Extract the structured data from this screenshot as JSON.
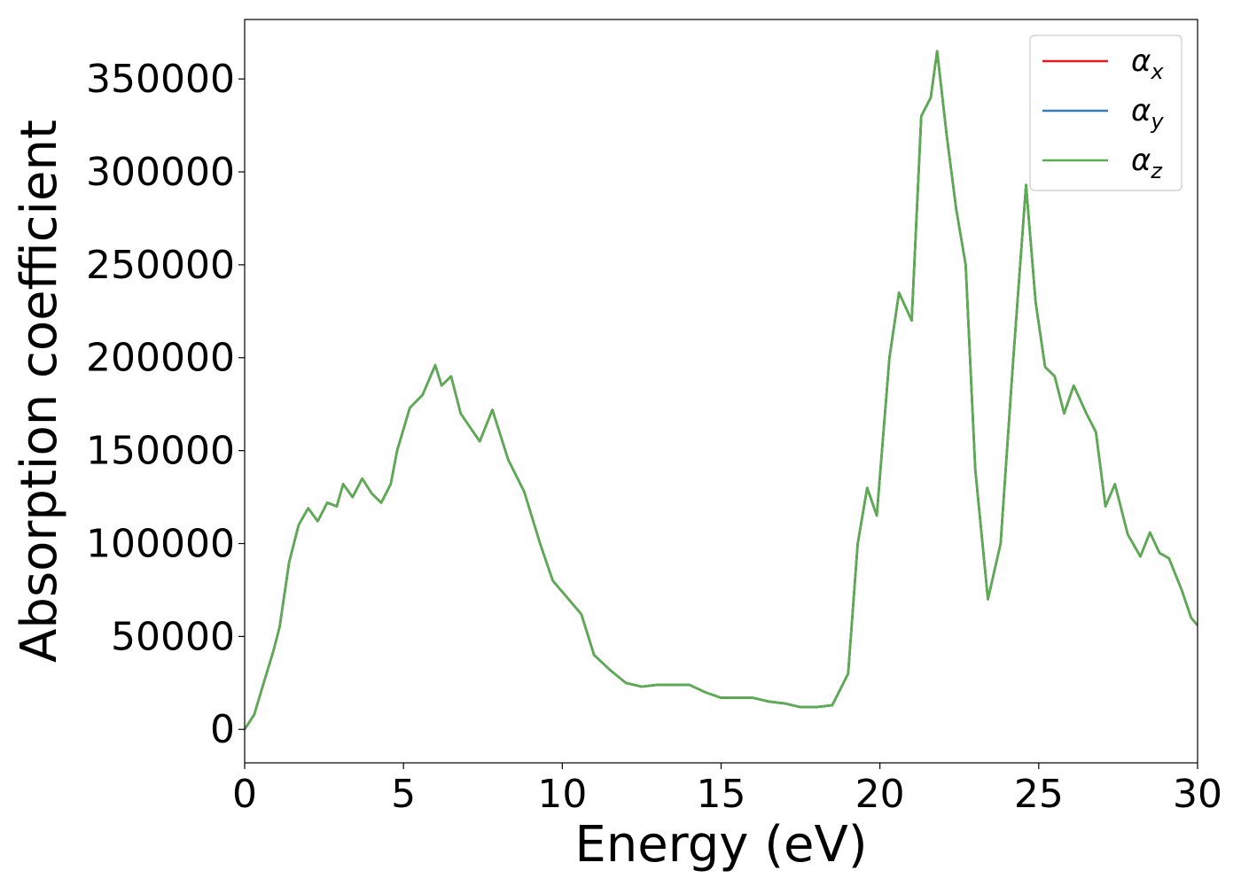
{
  "chart_data": {
    "type": "line",
    "xlabel": "Energy (eV)",
    "ylabel": "Absorption coefficient",
    "xlim": [
      0,
      30
    ],
    "ylim": [
      -18000,
      382000
    ],
    "xticks": [
      0,
      5,
      10,
      15,
      20,
      25,
      30
    ],
    "xtick_labels": [
      "0",
      "5",
      "10",
      "15",
      "20",
      "25",
      "30"
    ],
    "yticks": [
      0,
      50000,
      100000,
      150000,
      200000,
      250000,
      300000,
      350000
    ],
    "ytick_labels": [
      "0",
      "50000",
      "100000",
      "150000",
      "200000",
      "250000",
      "300000",
      "350000"
    ],
    "grid": false,
    "legend_position": "top-right",
    "x": [
      0,
      0.3,
      0.6,
      0.9,
      1.1,
      1.4,
      1.7,
      2.0,
      2.3,
      2.6,
      2.9,
      3.1,
      3.4,
      3.7,
      4.0,
      4.3,
      4.6,
      4.8,
      5.2,
      5.6,
      6.0,
      6.2,
      6.5,
      6.8,
      7.0,
      7.4,
      7.8,
      8.3,
      8.8,
      9.3,
      9.7,
      10.2,
      10.6,
      11.0,
      11.5,
      12.0,
      12.5,
      13.0,
      13.5,
      14.0,
      14.5,
      15.0,
      15.5,
      16.0,
      16.5,
      17.0,
      17.5,
      18.0,
      18.5,
      19.0,
      19.3,
      19.6,
      19.9,
      20.3,
      20.6,
      21.0,
      21.3,
      21.6,
      21.8,
      22.1,
      22.4,
      22.7,
      23.0,
      23.4,
      23.8,
      24.2,
      24.6,
      24.9,
      25.2,
      25.5,
      25.8,
      26.1,
      26.5,
      26.8,
      27.1,
      27.4,
      27.8,
      28.2,
      28.5,
      28.8,
      29.1,
      29.5,
      29.8,
      30.0
    ],
    "series": [
      {
        "name": "αx",
        "color": "#e41a1c",
        "values": [
          0,
          8000,
          25000,
          42000,
          55000,
          90000,
          110000,
          119000,
          112000,
          122000,
          120000,
          132000,
          125000,
          135000,
          127000,
          122000,
          132000,
          150000,
          173000,
          180000,
          196000,
          185000,
          190000,
          170000,
          165000,
          155000,
          172000,
          145000,
          128000,
          100000,
          80000,
          70000,
          62000,
          40000,
          32000,
          25000,
          23000,
          24000,
          24000,
          24000,
          20000,
          17000,
          17000,
          17000,
          15000,
          14000,
          12000,
          12000,
          13000,
          30000,
          100000,
          130000,
          115000,
          200000,
          235000,
          220000,
          330000,
          340000,
          365000,
          320000,
          280000,
          250000,
          140000,
          70000,
          100000,
          200000,
          293000,
          230000,
          195000,
          190000,
          170000,
          185000,
          170000,
          160000,
          120000,
          132000,
          105000,
          93000,
          106000,
          95000,
          92000,
          75000,
          60000,
          56000
        ]
      },
      {
        "name": "αy",
        "color": "#377eb8",
        "values": [
          0,
          8000,
          25000,
          42000,
          55000,
          90000,
          110000,
          119000,
          112000,
          122000,
          120000,
          132000,
          125000,
          135000,
          127000,
          122000,
          132000,
          150000,
          173000,
          180000,
          196000,
          185000,
          190000,
          170000,
          165000,
          155000,
          172000,
          145000,
          128000,
          100000,
          80000,
          70000,
          62000,
          40000,
          32000,
          25000,
          23000,
          24000,
          24000,
          24000,
          20000,
          17000,
          17000,
          17000,
          15000,
          14000,
          12000,
          12000,
          13000,
          30000,
          100000,
          130000,
          115000,
          200000,
          235000,
          220000,
          330000,
          340000,
          365000,
          320000,
          280000,
          250000,
          140000,
          70000,
          100000,
          200000,
          293000,
          230000,
          195000,
          190000,
          170000,
          185000,
          170000,
          160000,
          120000,
          132000,
          105000,
          93000,
          106000,
          95000,
          92000,
          75000,
          60000,
          56000
        ]
      },
      {
        "name": "αz",
        "color": "#5aad4f",
        "values": [
          0,
          8000,
          25000,
          42000,
          55000,
          90000,
          110000,
          119000,
          112000,
          122000,
          120000,
          132000,
          125000,
          135000,
          127000,
          122000,
          132000,
          150000,
          173000,
          180000,
          196000,
          185000,
          190000,
          170000,
          165000,
          155000,
          172000,
          145000,
          128000,
          100000,
          80000,
          70000,
          62000,
          40000,
          32000,
          25000,
          23000,
          24000,
          24000,
          24000,
          20000,
          17000,
          17000,
          17000,
          15000,
          14000,
          12000,
          12000,
          13000,
          30000,
          100000,
          130000,
          115000,
          200000,
          235000,
          220000,
          330000,
          340000,
          365000,
          320000,
          280000,
          250000,
          140000,
          70000,
          100000,
          200000,
          293000,
          230000,
          195000,
          190000,
          170000,
          185000,
          170000,
          160000,
          120000,
          132000,
          105000,
          93000,
          106000,
          95000,
          92000,
          75000,
          60000,
          56000
        ]
      }
    ]
  }
}
